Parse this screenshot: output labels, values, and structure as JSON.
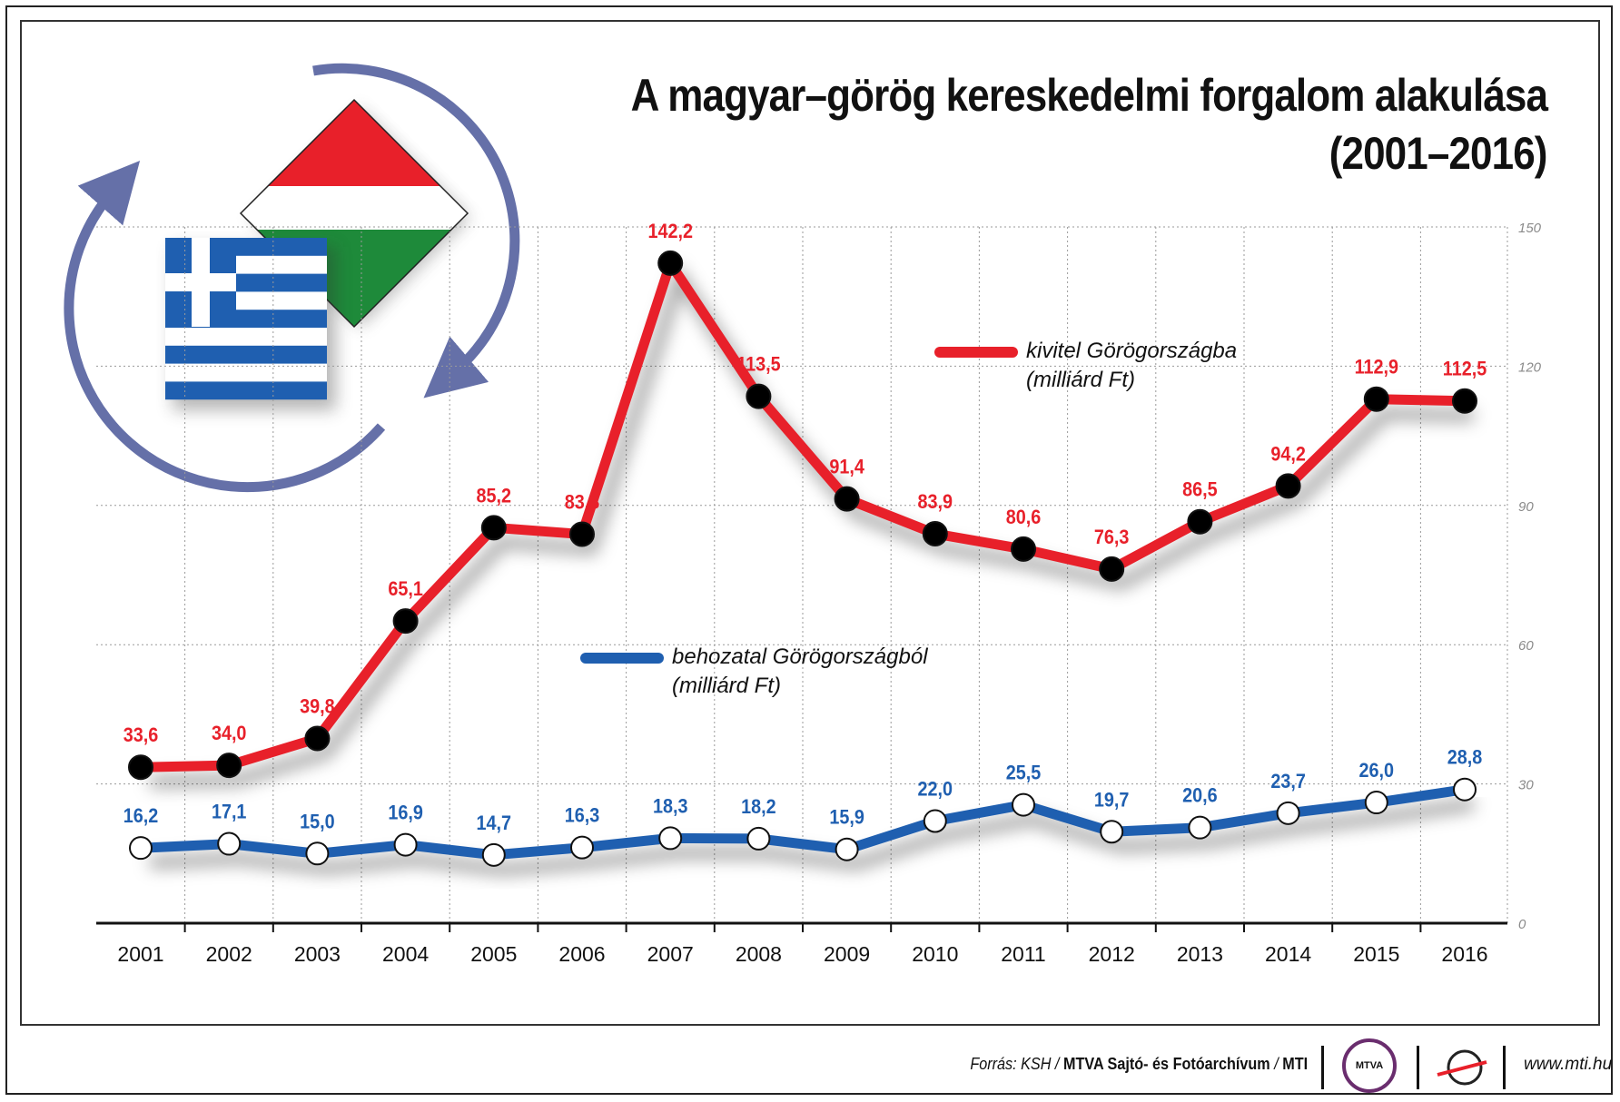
{
  "title": {
    "line1": "A magyar–görög kereskedelmi forgalom alakulása",
    "line2": "(2001–2016)"
  },
  "chart_data": {
    "type": "line",
    "categories": [
      "2001",
      "2002",
      "2003",
      "2004",
      "2005",
      "2006",
      "2007",
      "2008",
      "2009",
      "2010",
      "2011",
      "2012",
      "2013",
      "2014",
      "2015",
      "2016"
    ],
    "ylim": [
      0,
      150
    ],
    "yticks": [
      "0",
      "30",
      "60",
      "90",
      "120",
      "150"
    ],
    "grid": true,
    "series": [
      {
        "name": "kivitel Görögországba",
        "unit": "(milliárd Ft)",
        "color": "#e8202a",
        "marker_color": "#000000",
        "values": [
          33.6,
          34.0,
          39.8,
          65.1,
          85.2,
          83.8,
          142.2,
          113.5,
          91.4,
          83.9,
          80.6,
          76.3,
          86.5,
          94.2,
          112.9,
          112.5
        ],
        "labels": [
          "33,6",
          "34,0",
          "39,8",
          "65,1",
          "85,2",
          "83,8",
          "142,2",
          "113,5",
          "91,4",
          "83,9",
          "80,6",
          "76,3",
          "86,5",
          "94,2",
          "112,9",
          "112,5"
        ]
      },
      {
        "name": "behozatal Görögországból",
        "unit": "(milliárd Ft)",
        "color": "#1f5fb0",
        "marker_color": "#ffffff",
        "values": [
          16.2,
          17.1,
          15.0,
          16.9,
          14.7,
          16.3,
          18.3,
          18.2,
          15.9,
          22.0,
          25.5,
          19.7,
          20.6,
          23.7,
          26.0,
          28.8
        ],
        "labels": [
          "16,2",
          "17,1",
          "15,0",
          "16,9",
          "14,7",
          "16,3",
          "18,3",
          "18,2",
          "15,9",
          "22,0",
          "25,5",
          "19,7",
          "20,6",
          "23,7",
          "26,0",
          "28,8"
        ]
      }
    ]
  },
  "footer": {
    "source_prefix": "Forrás: KSH /",
    "source_org": "MTVA Sajtó- és Fotóarchívum",
    "source_sep": "/",
    "source_mti": "MTI",
    "mtva_logo_text": "MTVA",
    "url": "www.mti.hu"
  },
  "icons": [
    "circular-arrows-icon",
    "greek-flag-icon",
    "hungarian-flag-icon",
    "mti-logo-icon"
  ]
}
